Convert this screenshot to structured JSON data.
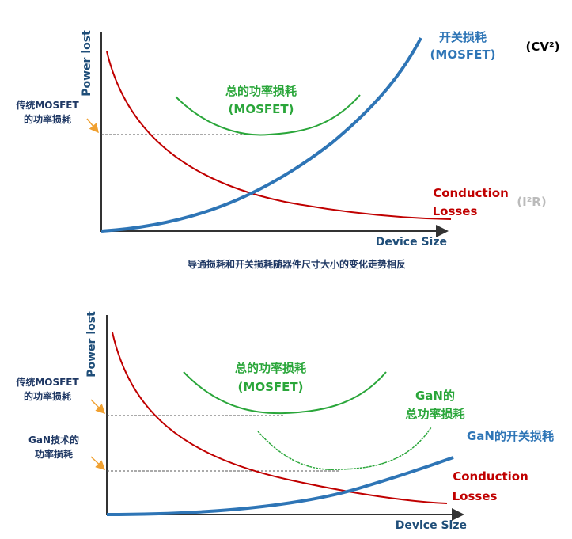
{
  "top": {
    "y_axis_label": "Power lost",
    "x_axis_label": "Device Size",
    "switching_loss": [
      "开关损耗",
      "(MOSFET)"
    ],
    "switching_formula": "(CV²)",
    "total_loss": [
      "总的功率损耗",
      "(MOSFET)"
    ],
    "traditional_loss": [
      "传统MOSFET",
      "的功率损耗"
    ],
    "conduction_loss": [
      "Conduction",
      "Losses"
    ],
    "conduction_formula": "(I²R)",
    "caption": "导通损耗和开关损耗随器件尺寸大小的变化走势相反"
  },
  "bottom": {
    "y_axis_label": "Power lost",
    "x_axis_label": "Device Size",
    "total_loss": [
      "总的功率损耗",
      "(MOSFET)"
    ],
    "gan_total_loss": [
      "GaN的",
      "总功率损耗"
    ],
    "gan_switching_loss": "GaN的开关损耗",
    "traditional_loss": [
      "传统MOSFET",
      "的功率损耗"
    ],
    "gan_loss": [
      "GaN技术的",
      "功率损耗"
    ],
    "conduction_loss": [
      "Conduction",
      "Losses"
    ]
  }
}
